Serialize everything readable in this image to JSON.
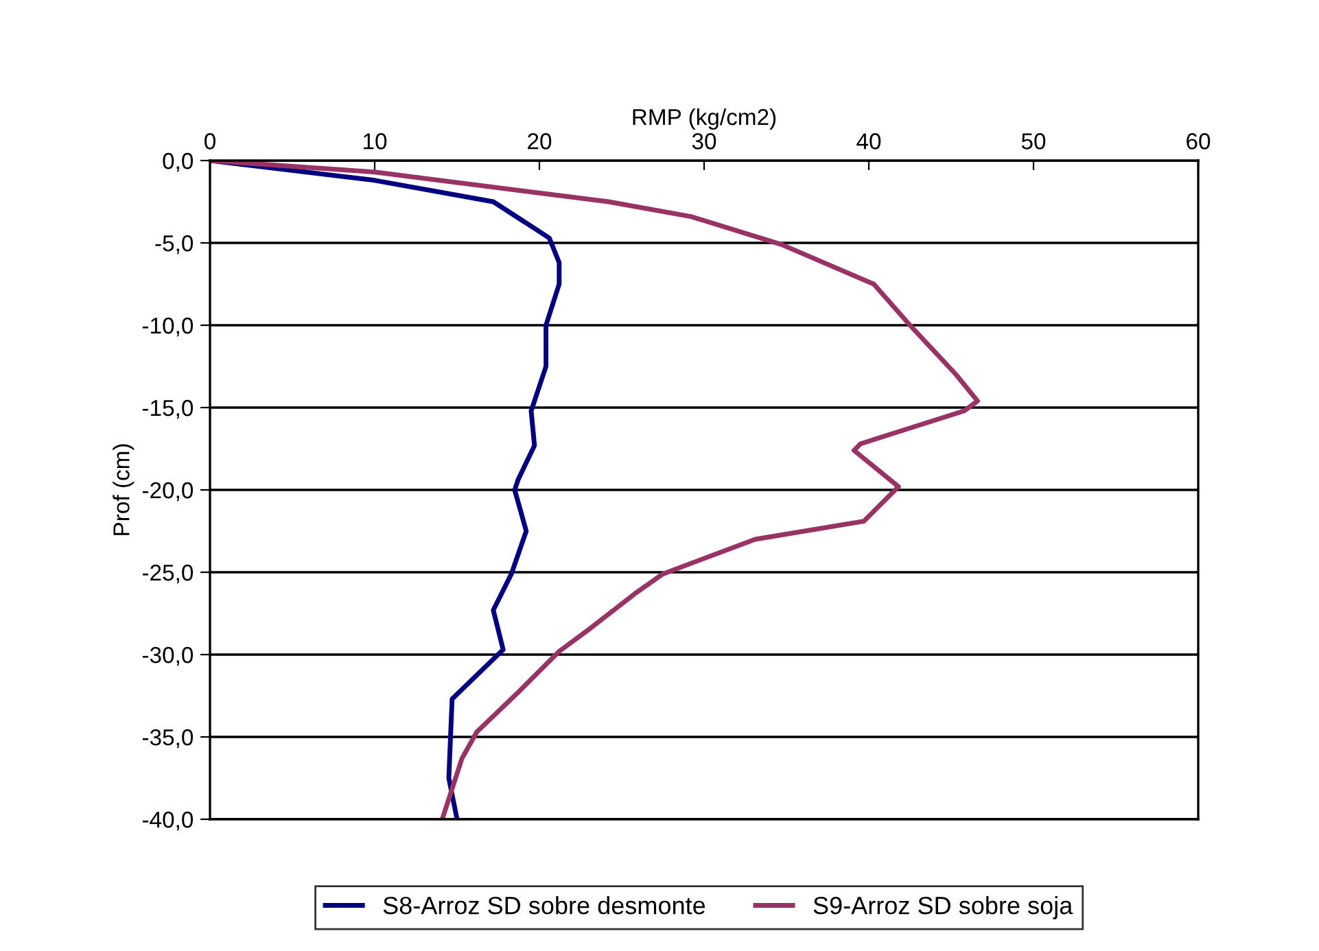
{
  "chart_data": {
    "type": "line",
    "xlabel": "RMP (kg/cm2)",
    "ylabel": "Prof (cm)",
    "xlim": [
      0,
      60
    ],
    "xticks": [
      0,
      10,
      20,
      30,
      40,
      50,
      60
    ],
    "ylim": [
      -40,
      0
    ],
    "yticks": [
      {
        "value": 0,
        "label": "0,0"
      },
      {
        "value": -5,
        "label": "-5,0"
      },
      {
        "value": -10,
        "label": "-10,0"
      },
      {
        "value": -15,
        "label": "-15,0"
      },
      {
        "value": -20,
        "label": "-20,0"
      },
      {
        "value": -25,
        "label": "-25,0"
      },
      {
        "value": -30,
        "label": "-30,0"
      },
      {
        "value": -35,
        "label": "-35,0"
      },
      {
        "value": -40,
        "label": "-40,0"
      }
    ],
    "grid": "y",
    "legend": "bottom",
    "line_style": "solid",
    "marker": "none",
    "series": [
      {
        "name": "S8-Arroz SD sobre desmonte",
        "color": "#000080",
        "x": [
          0,
          10.0,
          17.2,
          20.6,
          21.2,
          21.2,
          20.4,
          20.4,
          19.5,
          19.7,
          18.7,
          18.5,
          19.2,
          18.3,
          17.2,
          17.8,
          14.7,
          14.5,
          15.0
        ],
        "values": [
          0,
          -1.2,
          -2.5,
          -4.7,
          -6.2,
          -7.5,
          -10,
          -12.5,
          -15.2,
          -17.3,
          -19.4,
          -20,
          -22.5,
          -25.1,
          -27.3,
          -29.7,
          -32.7,
          -37.5,
          -40
        ]
      },
      {
        "name": "S9-Arroz SD sobre soja",
        "color": "#993366",
        "x": [
          0,
          10.0,
          24.2,
          29.2,
          34.7,
          40.3,
          42.5,
          45.3,
          46.6,
          45.8,
          39.5,
          39.1,
          41.8,
          39.7,
          33.1,
          27.5,
          25.8,
          23.1,
          21.2,
          18.7,
          16.2,
          15.3,
          14.1
        ],
        "values": [
          0,
          -0.7,
          -2.5,
          -3.4,
          -5.1,
          -7.5,
          -10,
          -13,
          -14.6,
          -15.2,
          -17.2,
          -17.6,
          -19.8,
          -21.9,
          -23,
          -25.1,
          -26.3,
          -28.4,
          -29.8,
          -32.3,
          -34.7,
          -36.3,
          -40
        ]
      }
    ]
  }
}
